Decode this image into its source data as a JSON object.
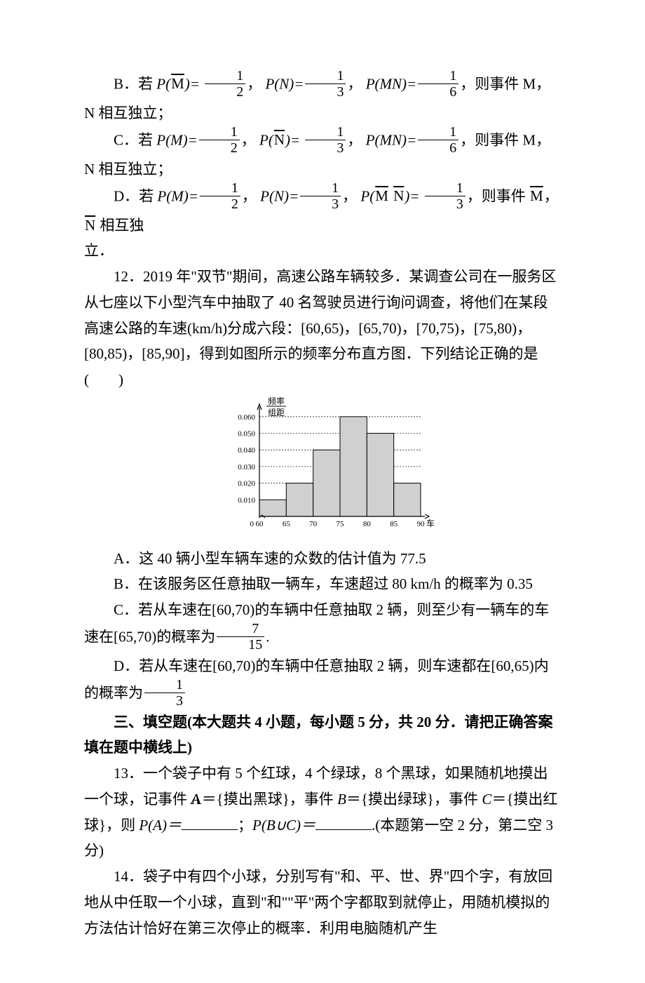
{
  "optB": {
    "lead": "B．若 ",
    "p1_l": "P(",
    "p1_bar": "M",
    "p1_r": ")=",
    "f1n": "1",
    "f1d": "2",
    "sep1": "，",
    "p2": "P(N)=",
    "f2n": "1",
    "f2d": "3",
    "sep2": "，",
    "p3": "P(MN)=",
    "f3n": "1",
    "f3d": "6",
    "tail": "，则事件 M，N 相互独立；"
  },
  "optC": {
    "lead": "C．若 ",
    "p1": "P(M)=",
    "f1n": "1",
    "f1d": "2",
    "sep1": "，",
    "p2_l": "P(",
    "p2_bar": "N",
    "p2_r": ")=",
    "f2n": "1",
    "f2d": "3",
    "sep2": "，",
    "p3": "P(MN)=",
    "f3n": "1",
    "f3d": "6",
    "tail": "，则事件 M，N 相互独立；"
  },
  "optD": {
    "lead": "D．若 ",
    "p1": "P(M)=",
    "f1n": "1",
    "f1d": "2",
    "sep1": "，",
    "p2": "P(N)=",
    "f2n": "1",
    "f2d": "3",
    "sep2": "，",
    "p3_l": "P(",
    "p3_bar1": "M",
    "p3_mid": " ",
    "p3_bar2": "N",
    "p3_r": ")=",
    "f3n": "1",
    "f3d": "3",
    "tail1": "，则事件 ",
    "bar_m": "M",
    "tail2": "， ",
    "bar_n": "N",
    "tail3": " 相互独"
  },
  "optD_cont": "立．",
  "q12": {
    "line1": "12．2019 年\"双节\"期间，高速公路车辆较多．某调查公司在一服务区从七座以下小型汽车中抽取了 40 名驾驶员进行询问调查，将他们在某段高速公路的车速(km/h)分成六段：[60,65)，[65,70)，[70,75)，[75,80)，[80,85)，[85,90]，得到如图所示的频率分布直方图．下列结论正确的是(　　)"
  },
  "chart": {
    "y_label_top": "频率",
    "y_label_bot": "组距",
    "y_ticks": [
      "0.010",
      "0.020",
      "0.030",
      "0.040",
      "0.050",
      "0.060"
    ],
    "y_values": [
      0.01,
      0.02,
      0.03,
      0.04,
      0.05,
      0.06
    ],
    "x_ticks": [
      "60",
      "65",
      "70",
      "75",
      "80",
      "85",
      "90"
    ],
    "x_label": "车速 (km/h)",
    "zero": "0",
    "bars": [
      0.01,
      0.02,
      0.04,
      0.06,
      0.05,
      0.02
    ],
    "y_max": 0.065,
    "bar_fill": "#d0d0d0",
    "bar_stroke": "#000000",
    "grid_dash": "2,2",
    "axis_color": "#000000",
    "label_fontsize": 12,
    "tick_fontsize": 11
  },
  "q12_opts": {
    "A": "A．这 40 辆小型车辆车速的众数的估计值为 77.5",
    "B": "B．在该服务区任意抽取一辆车，车速超过 80 km/h 的概率为 0.35",
    "C_pre": "C．若从车速在[60,70)的车辆中任意抽取 2 辆，则至少有一辆车的车速在[65,70)的概率为",
    "C_num": "7",
    "C_den": "15",
    "C_tail": ".",
    "D_pre": "D．若从车速在[60,70)的车辆中任意抽取 2 辆，则车速都在[60,65)内的概率为",
    "D_num": "1",
    "D_den": "3"
  },
  "section3": "三、填空题(本大题共 4 小题，每小题 5 分，共 20 分．请把正确答案填在题中横线上)",
  "q13": {
    "t1": "13．一个袋子中有 5 个红球，4 个绿球，8 个黑球，如果随机地摸出一个球，记事件 ",
    "Aeq": "A＝{摸出黑球}，事件 ",
    "Beq": "B＝{摸出绿球}，事件 ",
    "Ceq": "C＝{摸出红球}，则 ",
    "PA": "P(A)＝",
    "sep": "；",
    "PBC": "P(B∪C)＝",
    "tail": ".(本题第一空 2 分，第二空 3 分)"
  },
  "q14": "14．袋子中有四个小球，分别写有\"和、平、世、界\"四个字，有放回地从中任取一个小球，直到\"和\"\"平\"两个字都取到就停止，用随机模拟的方法估计恰好在第三次停止的概率．利用电脑随机产生"
}
